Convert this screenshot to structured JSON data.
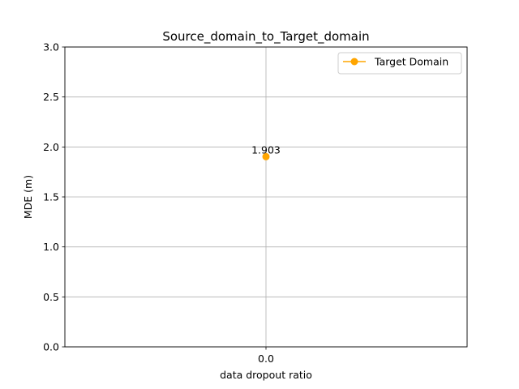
{
  "chart_data": {
    "type": "line",
    "title": "Source_domain_to_Target_domain",
    "xlabel": "data dropout ratio",
    "ylabel": "MDE (m)",
    "x": [
      0.0
    ],
    "x_tick_labels": [
      "0.0"
    ],
    "xlim": [
      -0.5,
      0.5
    ],
    "ylim": [
      0,
      3.0
    ],
    "y_ticks": [
      0.0,
      0.5,
      1.0,
      1.5,
      2.0,
      2.5,
      3.0
    ],
    "y_tick_labels": [
      "0.0",
      "0.5",
      "1.0",
      "1.5",
      "2.0",
      "2.5",
      "3.0"
    ],
    "grid": true,
    "legend_position": "upper right",
    "series": [
      {
        "name": "Target Domain",
        "color": "#FFA500",
        "marker": "circle",
        "values": [
          1.903
        ],
        "data_labels": [
          "1.903"
        ]
      }
    ]
  }
}
